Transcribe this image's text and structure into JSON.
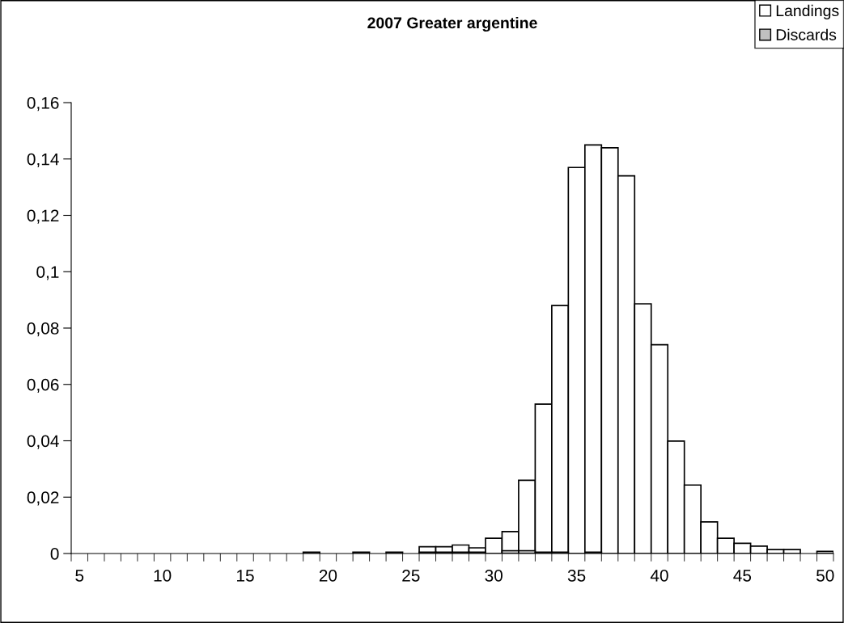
{
  "chart_data": {
    "type": "bar",
    "title": "2007 Greater argentine",
    "categories": [
      "5",
      null,
      null,
      null,
      null,
      "10",
      null,
      null,
      null,
      null,
      "15",
      null,
      null,
      null,
      null,
      "20",
      null,
      null,
      null,
      null,
      "25",
      null,
      null,
      null,
      null,
      "30",
      null,
      null,
      null,
      null,
      "35",
      null,
      null,
      null,
      null,
      "40",
      null,
      null,
      null,
      null,
      "45",
      null,
      null,
      null,
      null,
      "50"
    ],
    "series": [
      {
        "name": "Landings",
        "color": "#ffffff",
        "values": [
          null,
          null,
          null,
          null,
          null,
          null,
          null,
          null,
          null,
          null,
          null,
          null,
          null,
          null,
          null,
          null,
          null,
          null,
          null,
          null,
          null,
          0.0024,
          0.0024,
          0.003,
          0.002,
          0.0054,
          0.0078,
          0.026,
          0.053,
          0.088,
          0.137,
          0.145,
          0.144,
          0.134,
          0.0886,
          0.0741,
          0.0399,
          0.0243,
          0.0112,
          0.0054,
          0.0036,
          0.0026,
          0.0014,
          0.0014,
          null,
          null
        ]
      },
      {
        "name": "Discards",
        "color": "#c0c0c0",
        "values": [
          null,
          null,
          null,
          null,
          null,
          null,
          null,
          null,
          null,
          null,
          null,
          null,
          null,
          null,
          0.0005,
          null,
          null,
          0.0005,
          null,
          0.0005,
          null,
          0.0005,
          0.0005,
          0.0005,
          0.0005,
          null,
          0.001,
          0.001,
          0.0005,
          0.0005,
          null,
          0.0005,
          null,
          null,
          null,
          null,
          null,
          null,
          null,
          null,
          null,
          null,
          null,
          null,
          null,
          0.0008
        ]
      }
    ],
    "ylim": [
      0,
      0.16
    ],
    "yticks": [
      0,
      {
        "value": 0.02,
        "label": "0,02"
      },
      {
        "value": 0.04,
        "label": "0,04"
      },
      {
        "value": 0.06,
        "label": "0,06"
      },
      {
        "value": 0.08,
        "label": "0,08"
      },
      {
        "value": 0.1,
        "label": "0,1"
      },
      {
        "value": 0.12,
        "label": "0,12"
      },
      {
        "value": 0.14,
        "label": "0,14"
      },
      {
        "value": 0.16,
        "label": "0,16"
      }
    ],
    "grid": false,
    "legend": "top right"
  }
}
